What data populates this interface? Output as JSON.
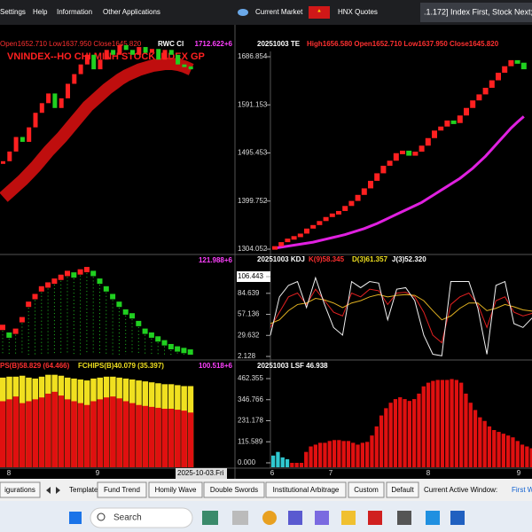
{
  "menu": {
    "items": [
      "Settings",
      "Help",
      "Information",
      "Other Applications",
      "Current Market",
      "HNX Quotes"
    ],
    "status": ".1.172] Index First, Stock Next;"
  },
  "left_panel": {
    "top": {
      "header": [
        "Open1652.710 Low1637.950 Close1645.820",
        "RWC CI",
        "1712.622+6"
      ],
      "title": "VNINDEX--HO CHI MINH STOCK INDEX  GP",
      "ylim": [
        1500,
        1712.622
      ],
      "closes": [
        1590,
        1600,
        1615,
        1610,
        1625,
        1640,
        1650,
        1660,
        1645,
        1655,
        1670,
        1680,
        1690,
        1700,
        1685,
        1695,
        1705,
        1700,
        1710,
        1705,
        1700,
        1708,
        1702,
        1706,
        1695,
        1705,
        1700,
        1690,
        1688,
        1685
      ],
      "band": [
        1560,
        1566,
        1572,
        1578,
        1585,
        1592,
        1600,
        1608,
        1615,
        1622,
        1630,
        1638,
        1646,
        1654,
        1660,
        1666,
        1672,
        1677,
        1682,
        1686,
        1689,
        1692,
        1694,
        1696,
        1697,
        1698,
        1698,
        1697,
        1695,
        1692
      ]
    },
    "middle": {
      "label": "121.988+6",
      "ylim": [
        0,
        121.988
      ],
      "values": [
        40,
        30,
        35,
        50,
        70,
        80,
        90,
        95,
        100,
        105,
        110,
        108,
        112,
        115,
        110,
        100,
        90,
        80,
        70,
        60,
        55,
        45,
        35,
        30,
        25,
        20,
        15,
        12,
        10,
        8
      ]
    },
    "bottom": {
      "labels": [
        "PS(B)58.829 (64.466)",
        "FCHIPS(B)40.079 (35.397)",
        "100.518+6"
      ],
      "ylim": [
        0,
        100.518
      ],
      "series": [
        {
          "color": "#f0e020",
          "values": [
            95,
            96,
            96,
            97,
            95,
            94,
            96,
            98,
            98,
            97,
            95,
            94,
            93,
            92,
            94,
            95,
            96,
            96,
            95,
            94,
            93,
            92,
            91,
            90,
            89,
            88,
            88,
            87,
            86,
            86
          ]
        },
        {
          "color": "#e01010",
          "values": [
            70,
            72,
            75,
            68,
            70,
            72,
            74,
            78,
            80,
            76,
            72,
            70,
            68,
            66,
            70,
            72,
            74,
            75,
            73,
            70,
            68,
            66,
            65,
            64,
            63,
            62,
            62,
            61,
            60,
            58
          ]
        }
      ]
    },
    "x_labels": [
      "8",
      "9"
    ],
    "date": "2025-10-03.Fri"
  },
  "right_panel": {
    "top": {
      "header": [
        "20251003 TE",
        "High1656.580 Open1652.710 Low1637.950 Close1645.820"
      ],
      "ylim": [
        1304.052,
        1686.854
      ],
      "yticks": [
        1686.854,
        1591.153,
        1495.453,
        1399.752,
        1304.052
      ],
      "closes": [
        1310,
        1318,
        1325,
        1330,
        1335,
        1345,
        1352,
        1360,
        1368,
        1375,
        1380,
        1390,
        1400,
        1412,
        1425,
        1440,
        1455,
        1470,
        1480,
        1495,
        1500,
        1490,
        1498,
        1510,
        1525,
        1540,
        1548,
        1560,
        1555,
        1570,
        1585,
        1600,
        1612,
        1625,
        1640,
        1655,
        1668,
        1680,
        1675,
        1662
      ],
      "average": [
        1306,
        1308,
        1310,
        1312,
        1314,
        1316,
        1318,
        1321,
        1324,
        1327,
        1330,
        1333,
        1337,
        1341,
        1345,
        1350,
        1355,
        1361,
        1367,
        1373,
        1379,
        1385,
        1391,
        1397,
        1405,
        1413,
        1421,
        1429,
        1437,
        1445,
        1455,
        1465,
        1477,
        1489,
        1503,
        1517,
        1531,
        1545,
        1557,
        1568
      ],
      "average_color": "#e020e0"
    },
    "middle": {
      "header": [
        "20251003 KDJ",
        "K(9)58.345",
        "D(3)61.357",
        "J(3)52.320"
      ],
      "ylim": [
        2.128,
        106.443
      ],
      "yticks": [
        106.443,
        84.639,
        57.136,
        29.632,
        2.128
      ],
      "series": [
        {
          "color": "#e02020",
          "values": [
            40,
            60,
            80,
            85,
            70,
            90,
            75,
            60,
            55,
            85,
            80,
            90,
            88,
            70,
            85,
            86,
            80,
            60,
            30,
            20,
            70,
            80,
            85,
            70,
            40,
            75,
            80,
            60,
            55,
            58.345
          ]
        },
        {
          "color": "#e0b020",
          "values": [
            45,
            50,
            62,
            70,
            72,
            78,
            76,
            72,
            66,
            72,
            75,
            80,
            83,
            80,
            82,
            83,
            82,
            75,
            62,
            50,
            55,
            65,
            72,
            72,
            62,
            65,
            70,
            67,
            63,
            61.357
          ]
        },
        {
          "color": "#f0f0f0",
          "values": [
            30,
            80,
            95,
            100,
            66,
            105,
            70,
            40,
            30,
            100,
            92,
            100,
            98,
            50,
            90,
            92,
            75,
            30,
            5,
            3,
            100,
            100,
            100,
            65,
            5,
            95,
            100,
            45,
            40,
            52.32
          ]
        }
      ]
    },
    "bottom": {
      "header": "20251003 LSF 46.938",
      "ylim": [
        0,
        462.355
      ],
      "yticks": [
        462.355,
        346.766,
        231.178,
        115.589,
        {
          "value": 0,
          "label": "0.000"
        }
      ],
      "series": [
        {
          "color": "#30c8d0",
          "values": [
            40,
            60,
            30,
            20
          ]
        },
        {
          "color": "#e01010",
          "values": [
            0,
            0,
            0,
            60,
            90,
            100,
            110,
            110,
            120,
            125,
            125,
            120,
            120,
            110,
            100,
            110,
            115,
            150,
            200,
            260,
            300,
            330,
            350,
            360,
            350,
            340,
            350,
            380,
            420,
            440,
            450,
            455,
            455,
            455,
            460,
            455,
            440,
            380,
            330,
            290,
            250,
            230,
            200,
            180,
            170,
            160,
            150,
            140,
            120,
            100,
            90,
            80
          ]
        }
      ]
    },
    "x_labels": [
      "6",
      "7",
      "8",
      "9"
    ]
  },
  "toolbar": {
    "items": [
      "igurations",
      "Template",
      "Fund Trend",
      "Homily Wave",
      "Double Swords",
      "Institutional Arbitrage",
      "Custom",
      "Default",
      "Current Active Window:",
      "First W"
    ]
  },
  "taskbar": {
    "search": "Search"
  }
}
